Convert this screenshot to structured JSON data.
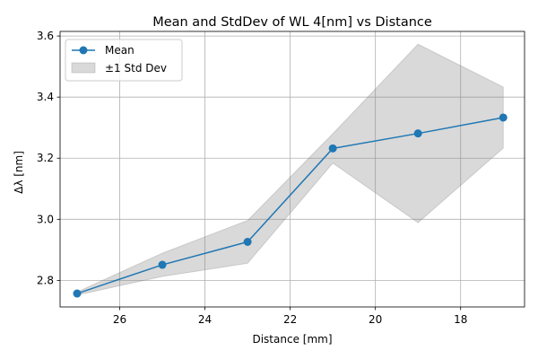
{
  "chart_data": {
    "type": "line",
    "title": "Mean and StdDev of WL 4[nm] vs Distance",
    "xlabel": "Distance [mm]",
    "ylabel": "Δλ [nm]",
    "x_axis_inverted": true,
    "xlim": [
      27.4,
      16.5
    ],
    "ylim": [
      2.713,
      3.615
    ],
    "grid": true,
    "legend_position": "upper-left",
    "x_ticks": [
      26,
      24,
      22,
      20,
      18
    ],
    "y_ticks": [
      2.8,
      3.0,
      3.2,
      3.4,
      3.6
    ],
    "x_tick_labels": [
      "26",
      "24",
      "22",
      "20",
      "18"
    ],
    "y_tick_labels": [
      "2.8",
      "3.0",
      "3.2",
      "3.4",
      "3.6"
    ],
    "x": [
      27,
      25,
      23,
      21,
      19,
      17
    ],
    "series": [
      {
        "name": "Mean",
        "values": [
          2.757,
          2.851,
          2.926,
          3.232,
          3.281,
          3.333
        ],
        "color": "#1f77b4",
        "marker": "circle"
      }
    ],
    "band": {
      "name": "±1 Std Dev",
      "lower": [
        2.752,
        2.813,
        2.856,
        3.184,
        2.989,
        3.233
      ],
      "upper": [
        2.762,
        2.889,
        2.996,
        3.28,
        3.573,
        3.433
      ],
      "color": "#808080",
      "opacity": 0.3
    },
    "legend": [
      "Mean",
      "±1 Std Dev"
    ]
  }
}
